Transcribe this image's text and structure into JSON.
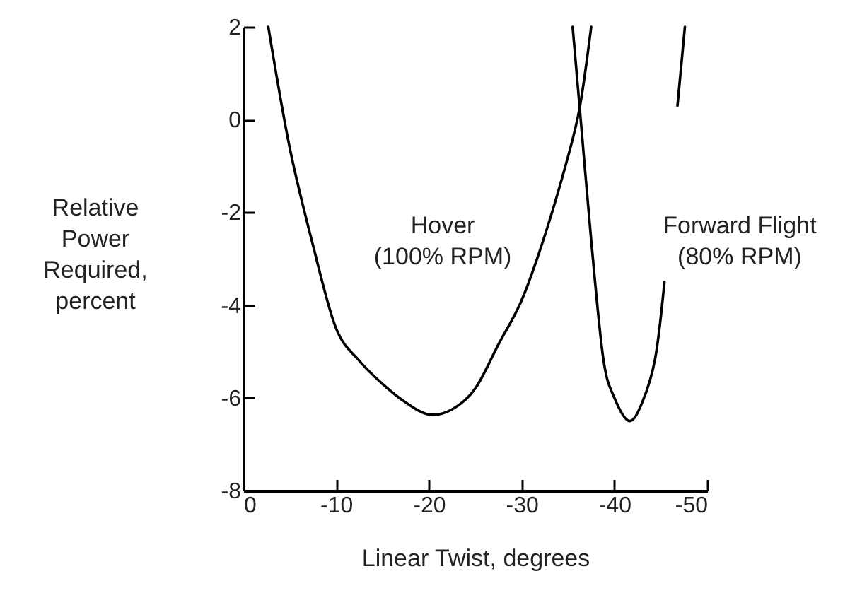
{
  "chart_data": {
    "type": "line",
    "xlabel": "Linear Twist, degrees",
    "ylabel": "Relative\nPower\nRequired,\npercent",
    "xlim": [
      0,
      -50
    ],
    "xticks": [
      0,
      -10,
      -20,
      -30,
      -40,
      -50
    ],
    "ylim": [
      -8,
      2
    ],
    "yticks": [
      -8,
      -6,
      -4,
      -2,
      0,
      2
    ],
    "grid": false,
    "series": [
      {
        "color": "#000000",
        "x": [
          -2.7,
          -5,
          -7.5,
          -10,
          -12.5,
          -15,
          -17.5,
          -20,
          -22.5,
          -25,
          -27.5,
          -30,
          -32.5,
          -35,
          -36.3,
          -37.5
        ],
        "values": [
          2,
          -0.6,
          -2.7,
          -4.5,
          -5.2,
          -5.7,
          -6.1,
          -6.36,
          -6.25,
          -5.8,
          -4.85,
          -3.9,
          -2.5,
          -0.8,
          0.3,
          2
        ]
      },
      {
        "color": "#000000",
        "x": [
          -35.5,
          -36.5,
          -37.5,
          -38.8,
          -40,
          -41.6,
          -43,
          -44.4,
          -45.4,
          -46.1,
          -46.8,
          -47.6
        ],
        "values": [
          2,
          -0.3,
          -2.6,
          -5.15,
          -6,
          -6.5,
          -6.1,
          -5.15,
          -3.5,
          null,
          0.3,
          2
        ]
      }
    ],
    "annotations": [
      "Hover\n(100% RPM)",
      "Forward Flight\n(80% RPM)"
    ]
  }
}
